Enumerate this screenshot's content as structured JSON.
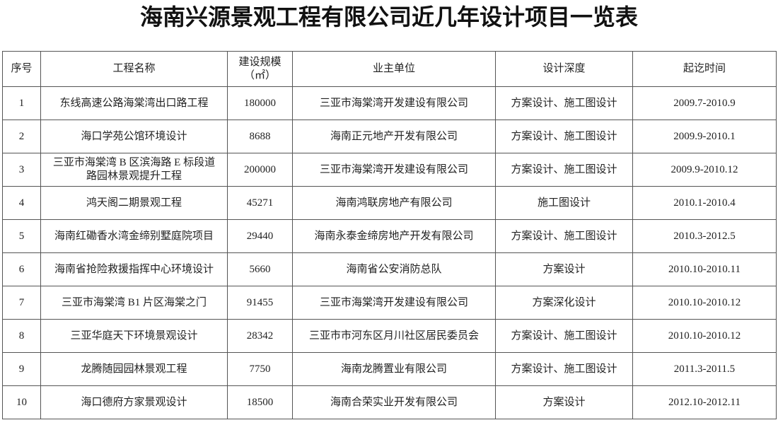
{
  "title": "海南兴源景观工程有限公司近几年设计项目一览表",
  "headers": {
    "index": "序号",
    "name": "工程名称",
    "scale_line1": "建设规模",
    "scale_line2": "（㎡）",
    "owner": "业主单位",
    "depth": "设计深度",
    "period": "起讫时间"
  },
  "rows": [
    {
      "index": "1",
      "name": "东线高速公路海棠湾出口路工程",
      "scale": "180000",
      "owner": "三亚市海棠湾开发建设有限公司",
      "depth": "方案设计、施工图设计",
      "period": "2009.7-2010.9"
    },
    {
      "index": "2",
      "name": "海口学苑公馆环境设计",
      "scale": "8688",
      "owner": "海南正元地产开发有限公司",
      "depth": "方案设计、施工图设计",
      "period": "2009.9-2010.1"
    },
    {
      "index": "3",
      "name": "三亚市海棠湾 B 区滨海路 E 标段道路园林景观提升工程",
      "scale": "200000",
      "owner": "三亚市海棠湾开发建设有限公司",
      "depth": "方案设计、施工图设计",
      "period": "2009.9-2010.12"
    },
    {
      "index": "4",
      "name": "鸿天阁二期景观工程",
      "scale": "45271",
      "owner": "海南鸿联房地产有限公司",
      "depth": "施工图设计",
      "period": "2010.1-2010.4"
    },
    {
      "index": "5",
      "name": "海南红磡香水湾金缔别墅庭院项目",
      "scale": "29440",
      "owner": "海南永泰金缔房地产开发有限公司",
      "depth": "方案设计、施工图设计",
      "period": "2010.3-2012.5"
    },
    {
      "index": "6",
      "name": "海南省抢险救援指挥中心环境设计",
      "scale": "5660",
      "owner": "海南省公安消防总队",
      "depth": "方案设计",
      "period": "2010.10-2010.11"
    },
    {
      "index": "7",
      "name": "三亚市海棠湾 B1 片区海棠之门",
      "scale": "91455",
      "owner": "三亚市海棠湾开发建设有限公司",
      "depth": "方案深化设计",
      "period": "2010.10-2010.12"
    },
    {
      "index": "8",
      "name": "三亚华庭天下环境景观设计",
      "scale": "28342",
      "owner": "三亚市市河东区月川社区居民委员会",
      "depth": "方案设计、施工图设计",
      "period": "2010.10-2010.12"
    },
    {
      "index": "9",
      "name": "龙腾随园园林景观工程",
      "scale": "7750",
      "owner": "海南龙腾置业有限公司",
      "depth": "方案设计、施工图设计",
      "period": "2011.3-2011.5"
    },
    {
      "index": "10",
      "name": "海口德府方家景观设计",
      "scale": "18500",
      "owner": "海南合荣实业开发有限公司",
      "depth": "方案设计",
      "period": "2012.10-2012.11"
    }
  ]
}
